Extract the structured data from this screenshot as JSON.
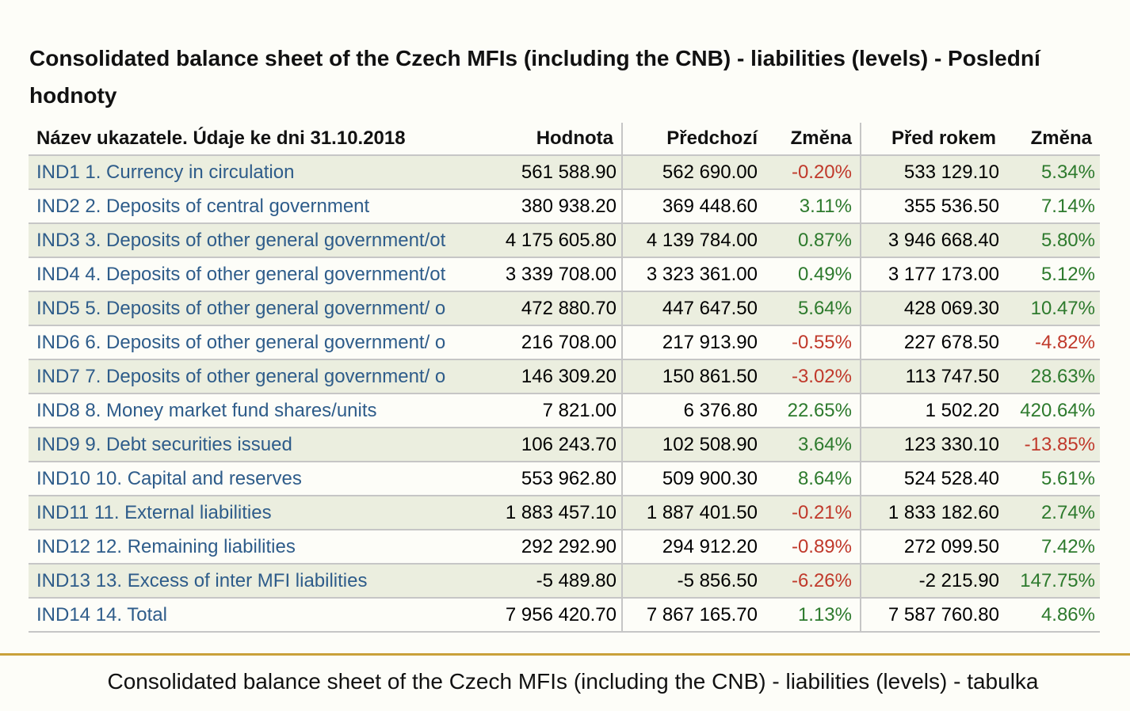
{
  "title": "Consolidated balance sheet of the Czech MFIs (including the CNB) - liabilities (levels) - Poslední hodnoty",
  "table": {
    "headers": {
      "name": "Název ukazatele. Údaje ke dni 31.10.2018",
      "value": "Hodnota",
      "previous": "Předchozí",
      "change1": "Změna",
      "year_ago": "Před rokem",
      "change2": "Změna"
    },
    "rows": [
      {
        "name": "IND1 1. Currency in circulation",
        "value": "561 588.90",
        "previous": "562 690.00",
        "change1": "-0.20%",
        "year_ago": "533 129.10",
        "change2": "5.34%"
      },
      {
        "name": "IND2 2. Deposits of central government",
        "value": "380 938.20",
        "previous": "369 448.60",
        "change1": "3.11%",
        "year_ago": "355 536.50",
        "change2": "7.14%"
      },
      {
        "name": "IND3 3. Deposits of other general government/ot",
        "value": "4 175 605.80",
        "previous": "4 139 784.00",
        "change1": "0.87%",
        "year_ago": "3 946 668.40",
        "change2": "5.80%"
      },
      {
        "name": "IND4 4. Deposits of other general government/ot",
        "value": "3 339 708.00",
        "previous": "3 323 361.00",
        "change1": "0.49%",
        "year_ago": "3 177 173.00",
        "change2": "5.12%"
      },
      {
        "name": "IND5 5. Deposits of other general government/ o",
        "value": "472 880.70",
        "previous": "447 647.50",
        "change1": "5.64%",
        "year_ago": "428 069.30",
        "change2": "10.47%"
      },
      {
        "name": "IND6 6. Deposits of other general government/ o",
        "value": "216 708.00",
        "previous": "217 913.90",
        "change1": "-0.55%",
        "year_ago": "227 678.50",
        "change2": "-4.82%"
      },
      {
        "name": "IND7 7. Deposits of other general government/ o",
        "value": "146 309.20",
        "previous": "150 861.50",
        "change1": "-3.02%",
        "year_ago": "113 747.50",
        "change2": "28.63%"
      },
      {
        "name": "IND8 8. Money market fund shares/units",
        "value": "7 821.00",
        "previous": "6 376.80",
        "change1": "22.65%",
        "year_ago": "1 502.20",
        "change2": "420.64%"
      },
      {
        "name": "IND9 9. Debt securities issued",
        "value": "106 243.70",
        "previous": "102 508.90",
        "change1": "3.64%",
        "year_ago": "123 330.10",
        "change2": "-13.85%"
      },
      {
        "name": "IND10 10. Capital and reserves",
        "value": "553 962.80",
        "previous": "509 900.30",
        "change1": "8.64%",
        "year_ago": "524 528.40",
        "change2": "5.61%"
      },
      {
        "name": "IND11 11. External liabilities",
        "value": "1 883 457.10",
        "previous": "1 887 401.50",
        "change1": "-0.21%",
        "year_ago": "1 833 182.60",
        "change2": "2.74%"
      },
      {
        "name": "IND12 12. Remaining liabilities",
        "value": "292 292.90",
        "previous": "294 912.20",
        "change1": "-0.89%",
        "year_ago": "272 099.50",
        "change2": "7.42%"
      },
      {
        "name": "IND13 13. Excess of inter MFI liabilities",
        "value": "-5 489.80",
        "previous": "-5 856.50",
        "change1": "-6.26%",
        "year_ago": "-2 215.90",
        "change2": "147.75%"
      },
      {
        "name": "IND14 14. Total",
        "value": "7 956 420.70",
        "previous": "7 867 165.70",
        "change1": "1.13%",
        "year_ago": "7 587 760.80",
        "change2": "4.86%"
      }
    ]
  },
  "caption": "Consolidated balance sheet of the Czech MFIs (including the CNB) - liabilities (levels) - tabulka",
  "colors": {
    "link": "#2e5c8a",
    "positive": "#2d7a2d",
    "negative": "#c0392b",
    "stripe": "#ebeedf",
    "footer_rule": "#c9a13b"
  }
}
